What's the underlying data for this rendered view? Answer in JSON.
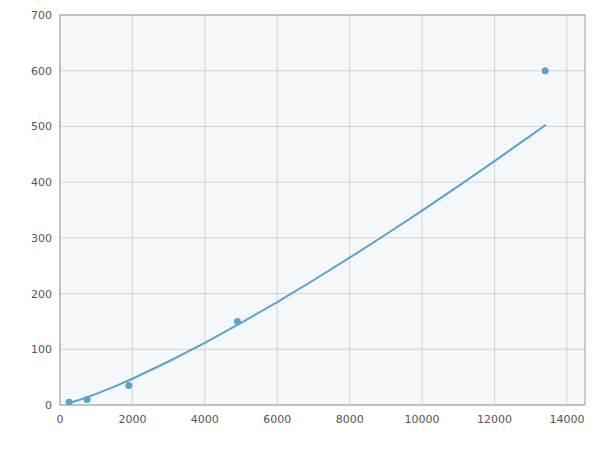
{
  "chart_data": {
    "type": "scatter",
    "series": [
      {
        "type": "line",
        "color": "#5ba3c9",
        "x": [
          250,
          500,
          1000,
          1500,
          2000,
          3000,
          4000,
          5000,
          6000,
          7000,
          8000,
          9000,
          10000,
          11000,
          12000,
          13000,
          13400
        ],
        "values": [
          3.55,
          8.4,
          19.9,
          32.95,
          47.13,
          78.05,
          111.63,
          147.33,
          184.84,
          223.9,
          264.37,
          306.07,
          348.92,
          392.84,
          437.77,
          483.56,
          502.14
        ]
      },
      {
        "type": "scatter",
        "color": "#5ba3c9",
        "x": [
          250,
          750,
          1900,
          4900,
          13400
        ],
        "values": [
          5,
          10,
          35,
          150,
          600
        ]
      }
    ],
    "xlim": [
      0,
      14500
    ],
    "ylim": [
      0,
      700
    ],
    "xticks": [
      0,
      2000,
      4000,
      6000,
      8000,
      10000,
      12000,
      14000
    ],
    "yticks": [
      0,
      100,
      200,
      300,
      400,
      500,
      600,
      700
    ],
    "grid": true
  }
}
